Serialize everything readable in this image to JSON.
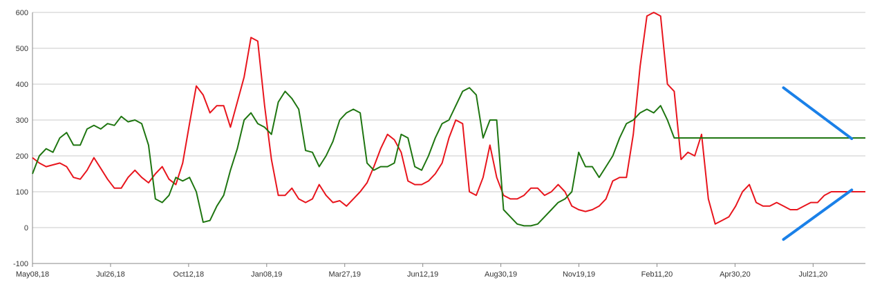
{
  "chart_data": {
    "type": "line",
    "title": "",
    "xlabel": "",
    "ylabel": "",
    "ylim": [
      -100,
      600
    ],
    "yticks": [
      -100,
      0,
      100,
      200,
      300,
      400,
      500,
      600
    ],
    "grid": true,
    "legend": "none",
    "x_ticks": [
      "May08,18",
      "Jul26,18",
      "Oct12,18",
      "Jan08,19",
      "Mar27,19",
      "Jun12,19",
      "Aug30,19",
      "Nov19,19",
      "Feb11,20",
      "Apr30,20",
      "Jul21,20"
    ],
    "x_index_range": [
      0,
      122
    ],
    "series": [
      {
        "color": "#e8141c",
        "x": [
          0,
          1,
          2,
          3,
          4,
          5,
          6,
          7,
          8,
          9,
          10,
          11,
          12,
          13,
          14,
          15,
          16,
          17,
          18,
          19,
          20,
          21,
          22,
          23,
          24,
          25,
          26,
          27,
          28,
          29,
          30,
          31,
          32,
          33,
          34,
          35,
          36,
          37,
          38,
          39,
          40,
          41,
          42,
          43,
          44,
          45,
          46,
          47,
          48,
          49,
          50,
          51,
          52,
          53,
          54,
          55,
          56,
          57,
          58,
          59,
          60,
          61,
          62,
          63,
          64,
          65,
          66,
          67,
          68,
          69,
          70,
          71,
          72,
          73,
          74,
          75,
          76,
          77,
          78,
          79,
          80,
          81,
          82,
          83,
          84,
          85,
          86,
          87,
          88,
          89,
          90,
          91,
          92,
          93,
          94,
          95,
          96,
          97,
          98,
          99,
          100,
          101,
          102,
          103,
          104,
          105,
          106,
          107,
          108,
          109,
          110,
          111,
          112,
          113,
          114,
          115,
          116,
          117,
          118,
          119,
          120,
          121,
          122
        ],
        "y": [
          195,
          180,
          170,
          175,
          180,
          170,
          140,
          135,
          160,
          195,
          165,
          135,
          110,
          110,
          140,
          160,
          140,
          125,
          150,
          170,
          135,
          120,
          180,
          290,
          395,
          370,
          320,
          340,
          340,
          280,
          350,
          420,
          530,
          520,
          340,
          190,
          90,
          90,
          110,
          80,
          70,
          80,
          120,
          90,
          70,
          75,
          60,
          80,
          100,
          125,
          170,
          220,
          260,
          245,
          210,
          130,
          120,
          120,
          130,
          150,
          180,
          250,
          300,
          290,
          100,
          90,
          140,
          230,
          140,
          90,
          80,
          80,
          90,
          110,
          110,
          90,
          100,
          120,
          100,
          60,
          50,
          45,
          50,
          60,
          80,
          130,
          140,
          140,
          260,
          450,
          590,
          600,
          590,
          400,
          380,
          190,
          210,
          200,
          260,
          80,
          10,
          20,
          30,
          60,
          100,
          120,
          70,
          60,
          60,
          70,
          60,
          50,
          50,
          60,
          70,
          70,
          90,
          100,
          100,
          100,
          100,
          100,
          100
        ]
      },
      {
        "color": "#1e7510",
        "x": [
          0,
          1,
          2,
          3,
          4,
          5,
          6,
          7,
          8,
          9,
          10,
          11,
          12,
          13,
          14,
          15,
          16,
          17,
          18,
          19,
          20,
          21,
          22,
          23,
          24,
          25,
          26,
          27,
          28,
          29,
          30,
          31,
          32,
          33,
          34,
          35,
          36,
          37,
          38,
          39,
          40,
          41,
          42,
          43,
          44,
          45,
          46,
          47,
          48,
          49,
          50,
          51,
          52,
          53,
          54,
          55,
          56,
          57,
          58,
          59,
          60,
          61,
          62,
          63,
          64,
          65,
          66,
          67,
          68,
          69,
          70,
          71,
          72,
          73,
          74,
          75,
          76,
          77,
          78,
          79,
          80,
          81,
          82,
          83,
          84,
          85,
          86,
          87,
          88,
          89,
          90,
          91,
          92,
          93,
          94,
          95,
          96,
          97,
          98,
          99,
          100,
          101,
          102,
          103,
          104,
          105,
          106,
          107,
          108,
          109,
          110,
          111,
          112,
          113,
          114,
          115,
          116,
          117,
          118,
          119,
          120,
          121,
          122
        ],
        "y": [
          150,
          200,
          220,
          210,
          250,
          265,
          230,
          230,
          275,
          285,
          275,
          290,
          285,
          310,
          295,
          300,
          290,
          230,
          80,
          70,
          90,
          140,
          130,
          140,
          100,
          15,
          20,
          60,
          90,
          160,
          220,
          300,
          320,
          290,
          280,
          260,
          350,
          380,
          360,
          330,
          215,
          210,
          170,
          200,
          240,
          300,
          320,
          330,
          320,
          180,
          160,
          170,
          170,
          180,
          260,
          250,
          170,
          160,
          200,
          250,
          290,
          300,
          340,
          380,
          390,
          370,
          250,
          300,
          300,
          50,
          30,
          10,
          5,
          5,
          10,
          30,
          50,
          70,
          80,
          100,
          210,
          170,
          170,
          140,
          170,
          200,
          250,
          290,
          300,
          320,
          330,
          320,
          340,
          300,
          250,
          250,
          250,
          250,
          250,
          250,
          250,
          250,
          250,
          250,
          250,
          250,
          250,
          250,
          250,
          250,
          250,
          250,
          250,
          250,
          250,
          250,
          250,
          250,
          250,
          250,
          250,
          250,
          250
        ]
      }
    ],
    "annotations": [
      {
        "type": "line",
        "color": "#1a80e8",
        "from": [
          110,
          390
        ],
        "to": [
          120,
          248
        ]
      },
      {
        "type": "line",
        "color": "#1a80e8",
        "from": [
          110,
          -33
        ],
        "to": [
          120,
          105
        ]
      }
    ]
  }
}
